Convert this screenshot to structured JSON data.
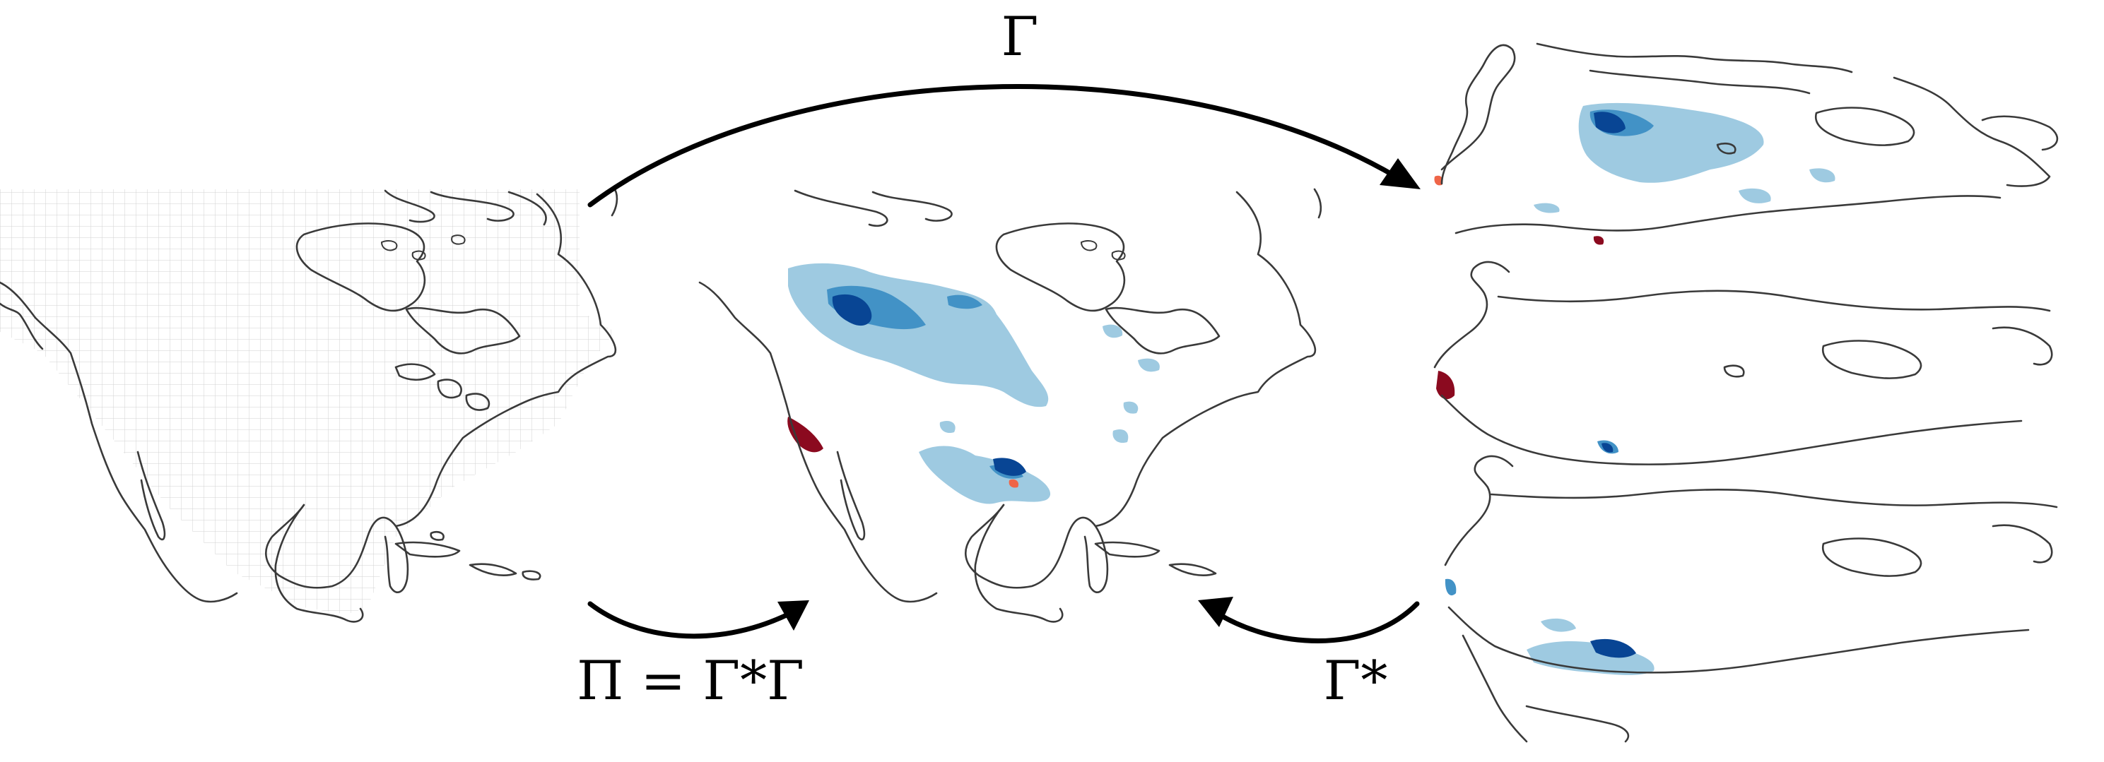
{
  "labels": {
    "gamma": "Γ",
    "gamma_star": "Γ*",
    "pi": "Π = Γ*Γ"
  },
  "colors": {
    "blue_light": "#9ecae1",
    "blue_mid": "#4292c6",
    "blue_dark": "#084594",
    "red_dark": "#8b0a1f",
    "red_light": "#ef6548"
  },
  "panels": [
    {
      "name": "gridded-north-america-map"
    },
    {
      "name": "projected-anomaly-map"
    },
    {
      "name": "stacked-transformed-maps"
    }
  ]
}
